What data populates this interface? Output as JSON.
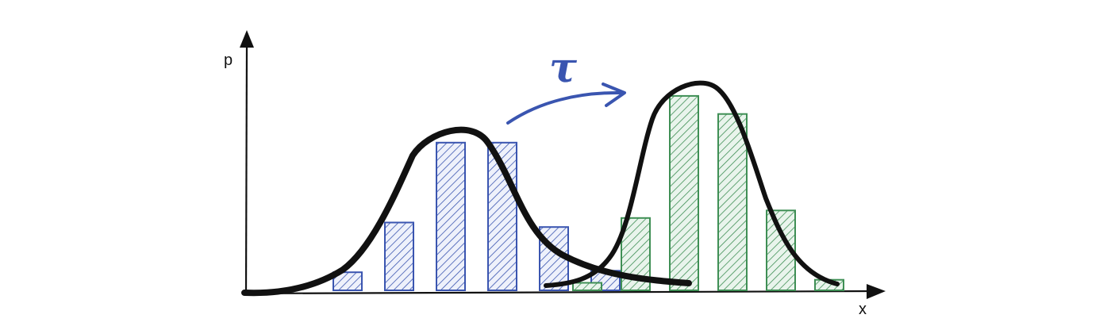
{
  "diagram": {
    "y_axis_label": "p",
    "x_axis_label": "x",
    "transform_label": "τ",
    "colors": {
      "ink": "#111111",
      "source": "#3a55b0",
      "source_fill": "#eef1fb",
      "target": "#3f8f55",
      "target_fill": "#e9f4ec",
      "arrow": "#3a55b0"
    },
    "source_histogram": [
      0.12,
      0.45,
      0.98,
      0.98,
      0.42,
      0.13
    ],
    "target_histogram": [
      0.05,
      0.48,
      1.29,
      1.17,
      0.53,
      0.07
    ]
  }
}
